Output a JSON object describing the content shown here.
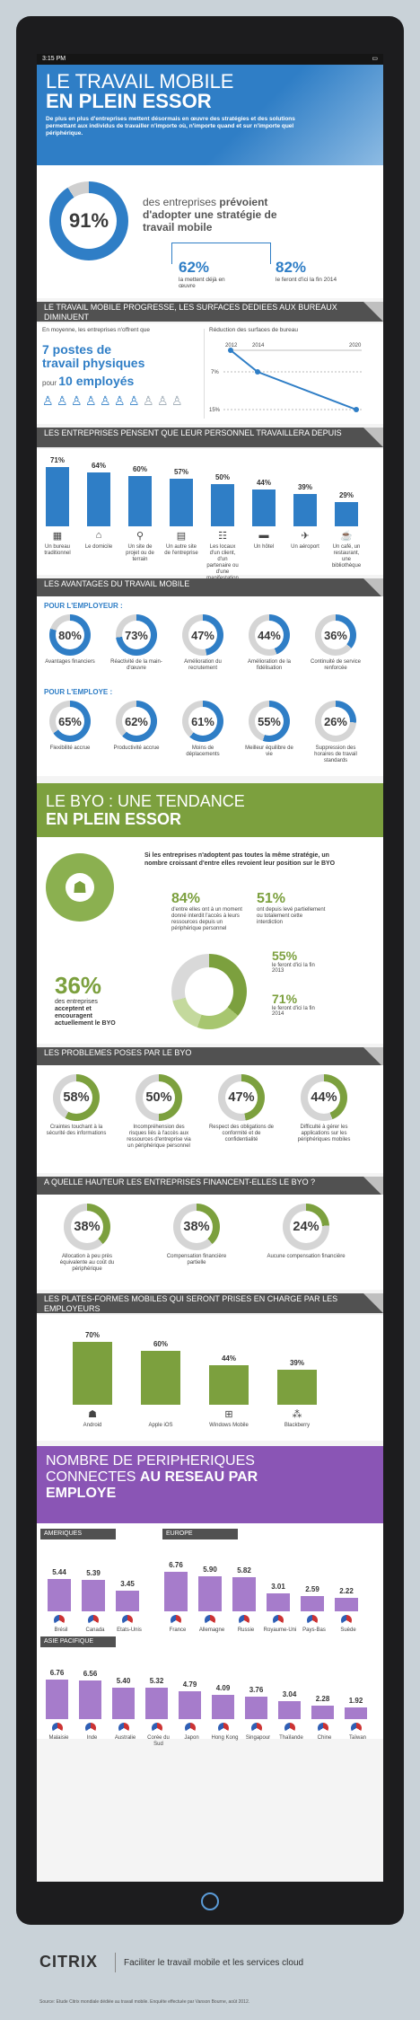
{
  "status": {
    "time": "3:15 PM"
  },
  "hero": {
    "title1": "LE TRAVAIL MOBILE",
    "title2": "EN PLEIN ESSOR",
    "intro": "De plus en plus d'entreprises mettent désormais en œuvre des stratégies et des solutions permettant aux individus de travailler n'importe où, n'importe quand et sur n'importe quel périphérique."
  },
  "stat91": {
    "value": "91%",
    "text1": "des entreprises",
    "text_strong": "prévoient d'adopter une stratégie de travail mobile",
    "sub1_value": "62%",
    "sub1_text": "la mettent déjà en œuvre",
    "sub2_value": "82%",
    "sub2_text": "le feront d'ici la fin 2014"
  },
  "s1": {
    "header": "LE TRAVAIL MOBILE PROGRESSE, LES SURFACES DEDIEES AUX BUREAUX DIMINUENT",
    "left_intro": "En moyenne, les entreprises n'offrent que",
    "left_big1": "7 postes de",
    "left_big2": "travail physiques",
    "left_small": "pour",
    "left_big3": "10 employés",
    "right_title": "Réduction des surfaces de bureau",
    "years": [
      "2012",
      "2014",
      "2020"
    ],
    "ticks": [
      "7%",
      "15%"
    ]
  },
  "s2": {
    "header": "LES ENTREPRISES PENSENT QUE LEUR PERSONNEL TRAVAILLERA DEPUIS",
    "bars": [
      {
        "pct": "71%",
        "value": 71,
        "label": "Un bureau traditionnel",
        "icon": "building-icon"
      },
      {
        "pct": "64%",
        "value": 64,
        "label": "Le domicile",
        "icon": "house-icon"
      },
      {
        "pct": "60%",
        "value": 60,
        "label": "Un site de projet ou de terrain",
        "icon": "location-pin-icon"
      },
      {
        "pct": "57%",
        "value": 57,
        "label": "Un autre site de l'entreprise",
        "icon": "office-icon"
      },
      {
        "pct": "50%",
        "value": 50,
        "label": "Les locaux d'un client, d'un partenaire ou d'une manifestation",
        "icon": "meeting-icon"
      },
      {
        "pct": "44%",
        "value": 44,
        "label": "Un hôtel",
        "icon": "bed-icon"
      },
      {
        "pct": "39%",
        "value": 39,
        "label": "Un aéroport",
        "icon": "plane-icon"
      },
      {
        "pct": "29%",
        "value": 29,
        "label": "Un café, un restaurant, une bibliothèque",
        "icon": "coffee-icon"
      }
    ]
  },
  "s3": {
    "header": "LES AVANTAGES DU TRAVAIL MOBILE",
    "employer_title": "POUR L'EMPLOYEUR :",
    "employer": [
      {
        "pct": "80%",
        "label": "Avantages financiers"
      },
      {
        "pct": "73%",
        "label": "Réactivité de la main-d'œuvre"
      },
      {
        "pct": "47%",
        "label": "Amélioration du recrutement"
      },
      {
        "pct": "44%",
        "label": "Amélioration de la fidélisation"
      },
      {
        "pct": "36%",
        "label": "Continuité de service renforcée"
      }
    ],
    "employee_title": "POUR L'EMPLOYE :",
    "employee": [
      {
        "pct": "65%",
        "label": "Flexibilité accrue"
      },
      {
        "pct": "62%",
        "label": "Productivité accrue"
      },
      {
        "pct": "61%",
        "label": "Moins de déplacements"
      },
      {
        "pct": "55%",
        "label": "Meilleur équilibre de vie"
      },
      {
        "pct": "26%",
        "label": "Suppression des horaires de travail standards"
      }
    ]
  },
  "byo": {
    "title1": "LE BYO : UNE TENDANCE",
    "title2": "EN PLEIN ESSOR",
    "text": "Si les entreprises n'adoptent pas toutes la même stratégie, un nombre croissant d'entre elles revoient leur position sur le BYO",
    "p84": "84%",
    "p84_text": "d'entre elles ont à un moment donné interdit l'accès à leurs ressources depuis un périphérique personnel",
    "p51": "51%",
    "p51_text": "ont depuis levé partiellement ou totalement cette interdiction",
    "p36": "36%",
    "p36_text1": "des entreprises",
    "p36_text2": "acceptent et",
    "p36_text3": "encouragent",
    "p36_text4": "actuellement le BYO",
    "p55": "55%",
    "p55_text": "le feront d'ici la fin 2013",
    "p71": "71%",
    "p71_text": "le feront d'ici la fin 2014"
  },
  "s4": {
    "header": "LES PROBLEMES POSES PAR LE BYO",
    "items": [
      {
        "pct": "58%",
        "label": "Craintes touchant à la sécurité des informations"
      },
      {
        "pct": "50%",
        "label": "Incompréhension des risques liés à l'accès aux ressources d'entreprise via un périphérique personnel"
      },
      {
        "pct": "47%",
        "label": "Respect des obligations de conformité et de confidentialité"
      },
      {
        "pct": "44%",
        "label": "Difficulté à gérer les applications sur les périphériques mobiles"
      }
    ]
  },
  "s5": {
    "header": "A QUELLE HAUTEUR LES ENTREPRISES FINANCENT-ELLES LE BYO ?",
    "items": [
      {
        "pct": "38%",
        "label": "Allocation à peu près équivalente au coût du périphérique"
      },
      {
        "pct": "38%",
        "label": "Compensation financière partielle"
      },
      {
        "pct": "24%",
        "label": "Aucune compensation financière"
      }
    ]
  },
  "s6": {
    "header": "LES PLATES-FORMES MOBILES QUI SERONT PRISES EN CHARGE PAR LES EMPLOYEURS",
    "bars": [
      {
        "pct": "70%",
        "value": 70,
        "label": "Android"
      },
      {
        "pct": "60%",
        "value": 60,
        "label": "Apple iOS"
      },
      {
        "pct": "44%",
        "value": 44,
        "label": "Windows Mobile"
      },
      {
        "pct": "39%",
        "value": 39,
        "label": "Blackberry"
      }
    ]
  },
  "s7": {
    "title1": "NOMBRE DE PERIPHERIQUES",
    "title2": "CONNECTES",
    "title2b": "AU RESEAU PAR",
    "title3": "EMPLOYE",
    "americas_label": "AMERIQUES",
    "americas": [
      {
        "value": "5.44",
        "num": 5.44,
        "country": "Brésil"
      },
      {
        "value": "5.39",
        "num": 5.39,
        "country": "Canada"
      },
      {
        "value": "3.45",
        "num": 3.45,
        "country": "Etats-Unis"
      }
    ],
    "europe_label": "EUROPE",
    "europe": [
      {
        "value": "6.76",
        "num": 6.76,
        "country": "France"
      },
      {
        "value": "5.90",
        "num": 5.9,
        "country": "Allemagne"
      },
      {
        "value": "5.82",
        "num": 5.82,
        "country": "Russie"
      },
      {
        "value": "3.01",
        "num": 3.01,
        "country": "Royaume-Uni"
      },
      {
        "value": "2.59",
        "num": 2.59,
        "country": "Pays-Bas"
      },
      {
        "value": "2.22",
        "num": 2.22,
        "country": "Suède"
      }
    ],
    "asia_label": "ASIE PACIFIQUE",
    "asia": [
      {
        "value": "6.76",
        "num": 6.76,
        "country": "Malaisie"
      },
      {
        "value": "6.56",
        "num": 6.56,
        "country": "Inde"
      },
      {
        "value": "5.40",
        "num": 5.4,
        "country": "Australie"
      },
      {
        "value": "5.32",
        "num": 5.32,
        "country": "Corée du Sud"
      },
      {
        "value": "4.79",
        "num": 4.79,
        "country": "Japon"
      },
      {
        "value": "4.09",
        "num": 4.09,
        "country": "Hong Kong"
      },
      {
        "value": "3.76",
        "num": 3.76,
        "country": "Singapour"
      },
      {
        "value": "3.04",
        "num": 3.04,
        "country": "Thaïlande"
      },
      {
        "value": "2.28",
        "num": 2.28,
        "country": "Chine"
      },
      {
        "value": "1.92",
        "num": 1.92,
        "country": "Taïwan"
      }
    ]
  },
  "footer": {
    "logo": "CITRIX",
    "tagline": "Faciliter le travail mobile et les services cloud",
    "source": "Source: Etude Citrix mondiale dédiée au travail mobile. Enquête effectuée par Vanson Bourne, août 2012."
  },
  "colors": {
    "blue": "#2f7ec6",
    "green": "#7ca03e",
    "purple": "#8a55b5",
    "grey": "#515151"
  }
}
